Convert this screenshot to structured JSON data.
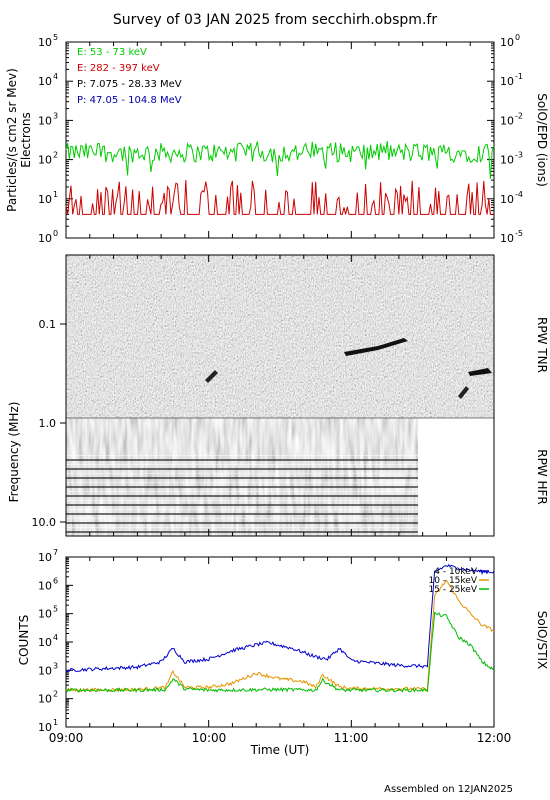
{
  "title": "Survey of 03 JAN 2025 from secchirh.obspm.fr",
  "footer": "Assembled on 12JAN2025",
  "x_axis": {
    "label": "Time (UT)",
    "ticks": [
      "09:00",
      "10:00",
      "11:00",
      "12:00"
    ],
    "range": [
      "09:00",
      "12:00"
    ]
  },
  "chart_data": [
    {
      "type": "line",
      "panel": "SolO/EPD",
      "ylabel": "Particles/(s cm2 sr Mev)",
      "ylabel2": "Electrons",
      "right_label": "SolO/EPD (ions)",
      "yscale": "log",
      "ylim": [
        1,
        100000
      ],
      "y_ticks": [
        "10",
        "10",
        "10",
        "10",
        "10",
        "10"
      ],
      "y_tick_exp": [
        "0",
        "1",
        "2",
        "3",
        "4",
        "5"
      ],
      "y2lim": [
        1e-05,
        1
      ],
      "y2_ticks": [
        "10",
        "10",
        "10",
        "10",
        "10",
        "10"
      ],
      "y2_tick_exp": [
        "-5",
        "-4",
        "-3",
        "-2",
        "-1",
        "0"
      ],
      "series": [
        {
          "name": "E: 53 - 73 keV",
          "color": "#00cc00",
          "level": 150,
          "low": 30,
          "high": 300
        },
        {
          "name": "E: 282 - 397 keV",
          "color": "#cc0000",
          "level": 6,
          "low": 4,
          "high": 30
        },
        {
          "name": "P: 7.075 - 28.33 MeV",
          "color": "#000000"
        },
        {
          "name": "P: 47.05 - 104.8 MeV",
          "color": "#0000aa"
        }
      ]
    },
    {
      "type": "heatmap",
      "panel": "RPW",
      "ylabel": "Frequency (MHz)",
      "yscale": "log",
      "ylim": [
        0.03,
        16
      ],
      "y_ticks": [
        "0.1",
        "1.0",
        "10.0"
      ],
      "sub_panels": [
        {
          "label": "RPW TNR",
          "freq_range": [
            0.03,
            1.0
          ]
        },
        {
          "label": "RPW HFR",
          "freq_range": [
            1.0,
            16
          ],
          "data_end": "11:32"
        }
      ],
      "features": [
        {
          "type": "drift burst",
          "start": "11:02",
          "end": "11:12",
          "freq": 0.13
        },
        {
          "type": "drift burst",
          "start": "11:43",
          "end": "11:49",
          "freq": 0.3
        }
      ]
    },
    {
      "type": "line",
      "panel": "SolO/STIX",
      "ylabel": "COUNTS",
      "right_label": "SolO/STIX",
      "yscale": "log",
      "ylim": [
        10,
        10000000
      ],
      "y_ticks": [
        "10",
        "10",
        "10",
        "10",
        "10",
        "10",
        "10"
      ],
      "y_tick_exp": [
        "1",
        "2",
        "3",
        "4",
        "5",
        "6",
        "7"
      ],
      "series": [
        {
          "name": "4 - 10keV",
          "color": "#0000cc",
          "x": [
            "09:00",
            "09:30",
            "09:40",
            "09:45",
            "09:50",
            "10:00",
            "10:10",
            "10:20",
            "10:25",
            "10:35",
            "10:45",
            "10:50",
            "10:55",
            "11:00",
            "11:10",
            "11:20",
            "11:30",
            "11:32",
            "11:35",
            "11:40",
            "11:45",
            "11:50",
            "11:55",
            "12:00"
          ],
          "values": [
            1000,
            1300,
            2000,
            6000,
            2000,
            2500,
            5000,
            8000,
            9500,
            6000,
            3000,
            2500,
            6000,
            2200,
            1800,
            1500,
            1400,
            1400,
            3000000,
            5000000,
            4000000,
            3500000,
            3000000,
            3000000
          ]
        },
        {
          "name": "10 - 15keV",
          "color": "#e69500",
          "x": [
            "09:00",
            "09:30",
            "09:42",
            "09:45",
            "09:50",
            "10:00",
            "10:10",
            "10:20",
            "10:30",
            "10:40",
            "10:45",
            "10:48",
            "10:55",
            "11:00",
            "11:30",
            "11:32",
            "11:35",
            "11:40",
            "11:45",
            "11:50",
            "11:55",
            "12:00"
          ],
          "values": [
            200,
            210,
            250,
            900,
            250,
            250,
            350,
            800,
            500,
            400,
            250,
            700,
            260,
            230,
            220,
            220,
            400000,
            1500000,
            300000,
            100000,
            40000,
            25000
          ]
        },
        {
          "name": "15 - 25keV",
          "color": "#00bb00",
          "x": [
            "09:00",
            "09:30",
            "09:42",
            "09:45",
            "09:50",
            "10:00",
            "10:30",
            "10:45",
            "10:48",
            "10:55",
            "11:00",
            "11:30",
            "11:32",
            "11:35",
            "11:40",
            "11:45",
            "11:50",
            "11:55",
            "12:00"
          ],
          "values": [
            200,
            200,
            210,
            500,
            220,
            200,
            210,
            200,
            450,
            200,
            200,
            200,
            200,
            100000,
            80000,
            15000,
            8000,
            2000,
            1000
          ]
        }
      ]
    }
  ]
}
